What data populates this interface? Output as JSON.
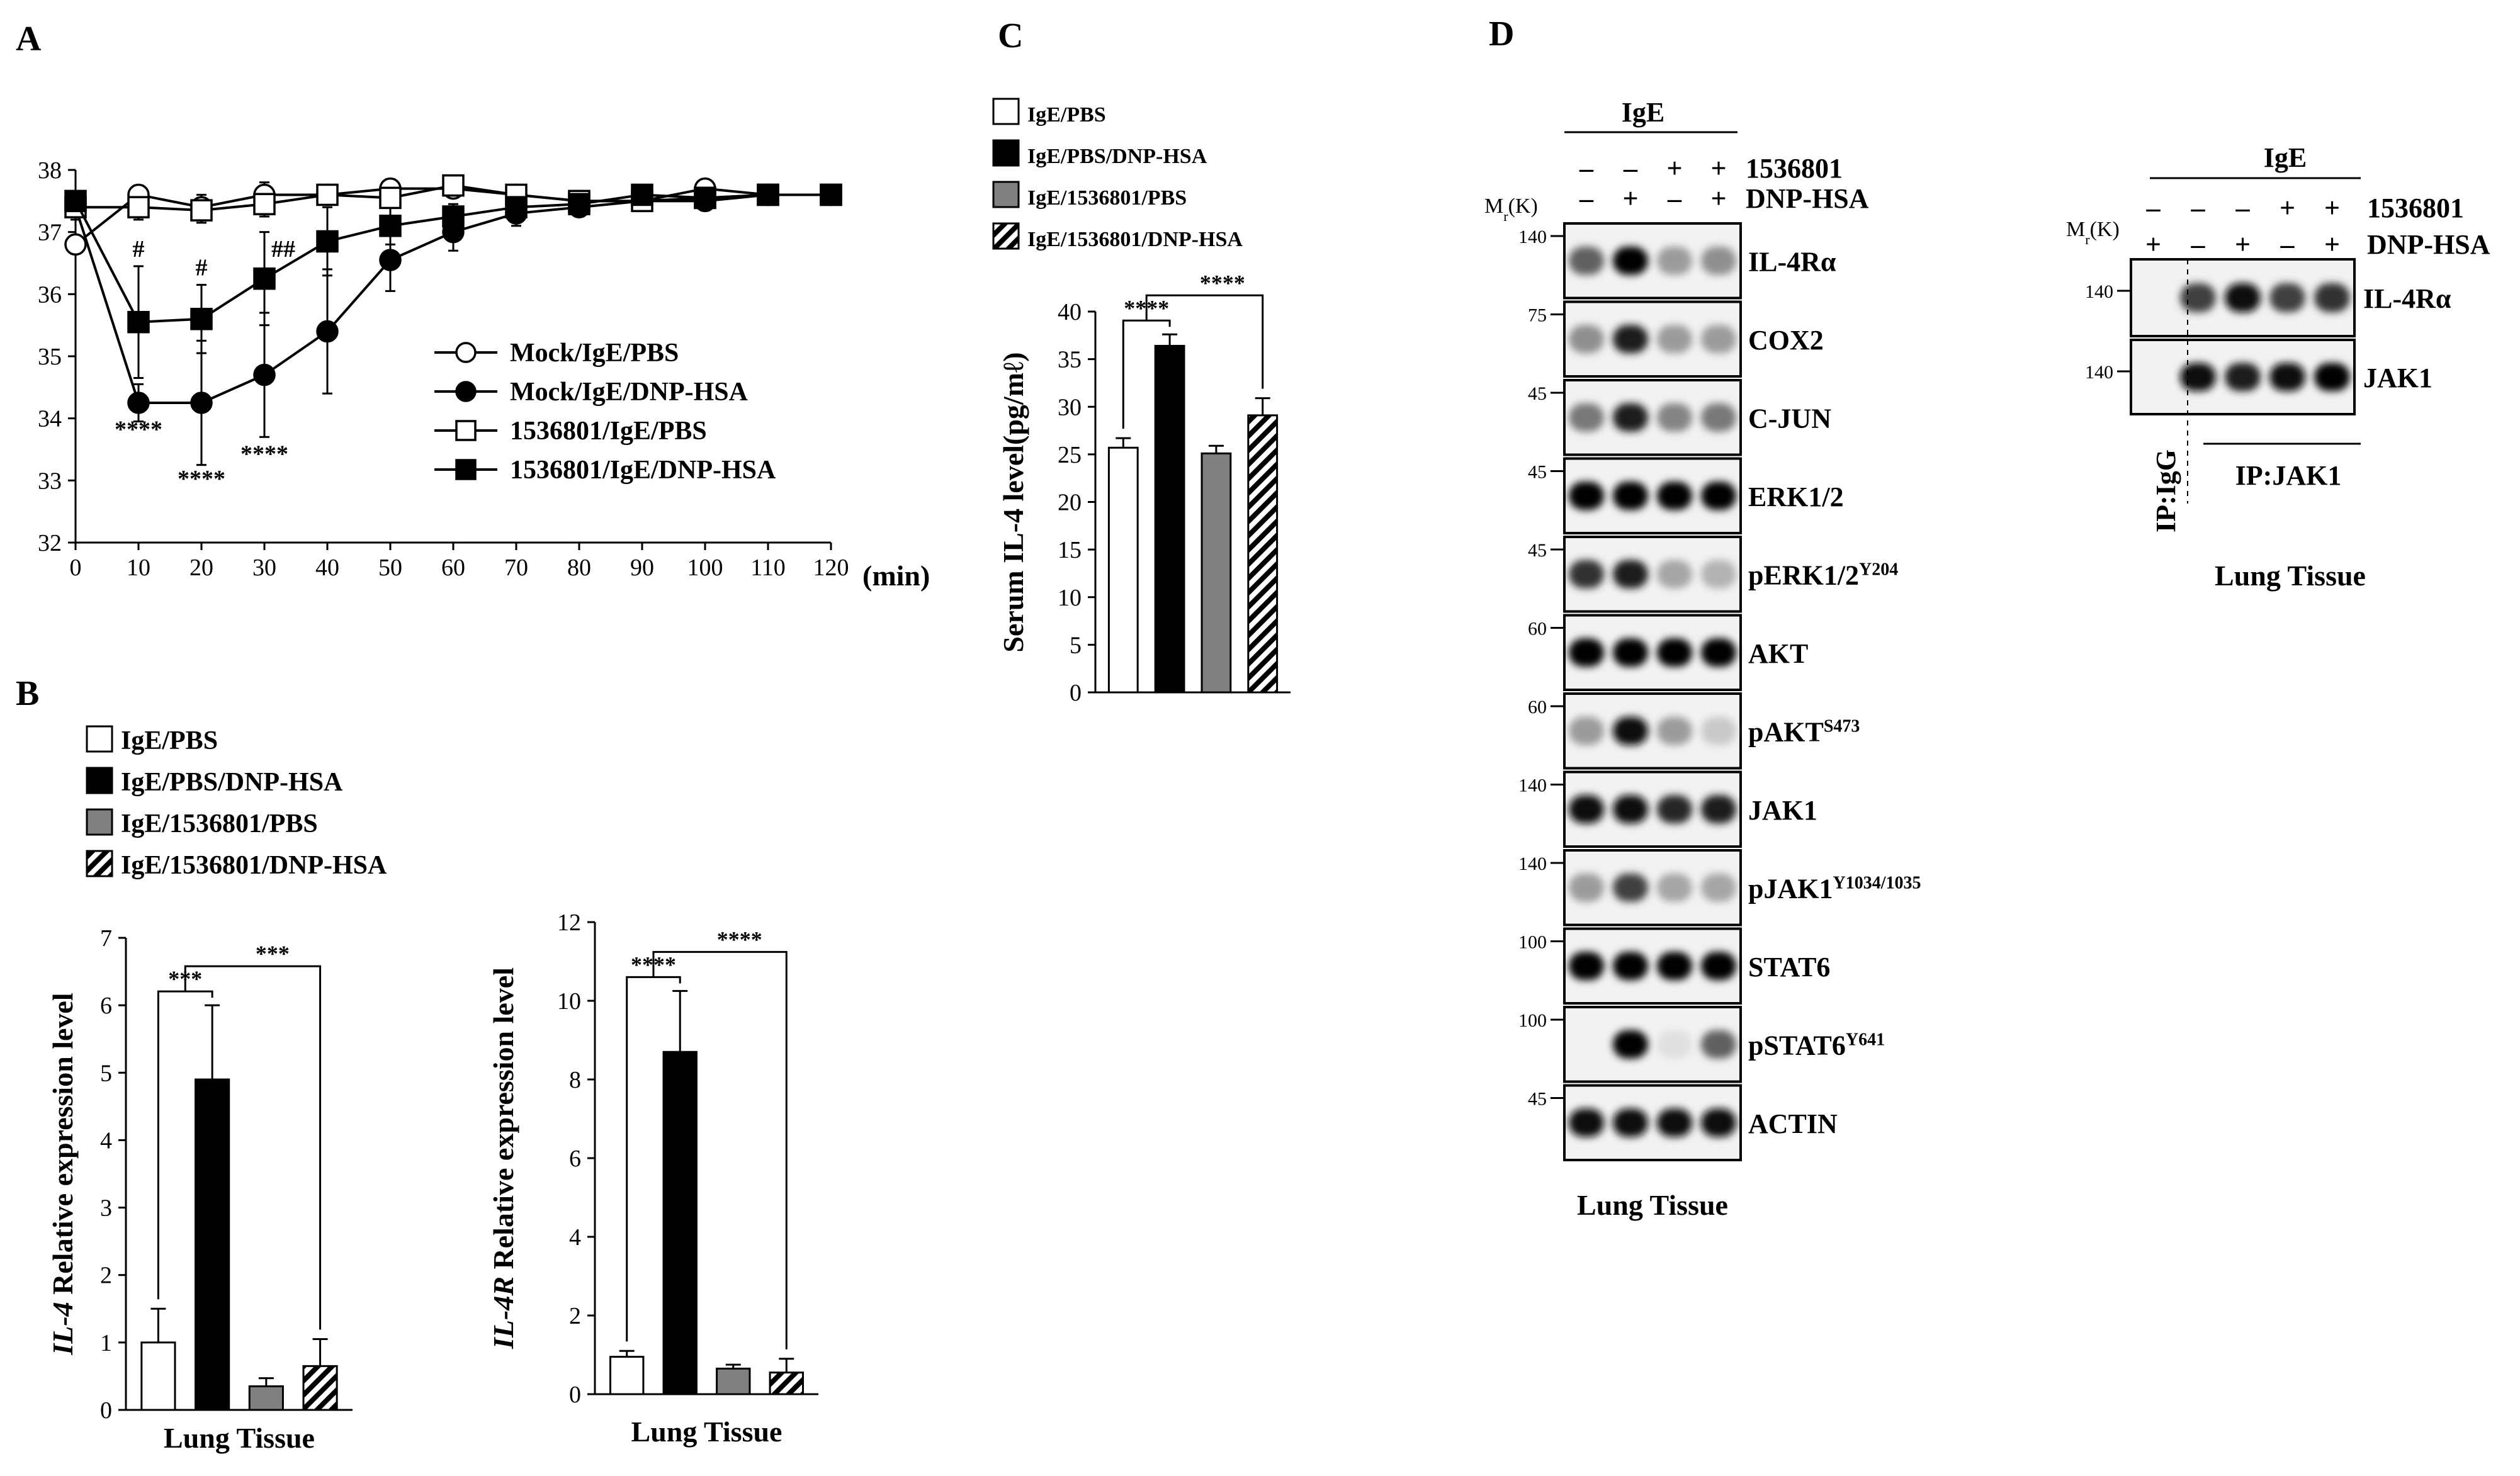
{
  "panels": {
    "A": {
      "label": "A",
      "chart_data": {
        "type": "line",
        "x": [
          0,
          10,
          20,
          30,
          40,
          50,
          60,
          70,
          80,
          90,
          100,
          110,
          120
        ],
        "xlabel": "(min)",
        "ylabel": "",
        "xlim": [
          0,
          120
        ],
        "ylim": [
          32,
          38
        ],
        "xticks": [
          "0",
          "10",
          "20",
          "30",
          "40",
          "50",
          "60",
          "70",
          "80",
          "90",
          "100",
          "110",
          "120"
        ],
        "yticks": [
          "32",
          "33",
          "34",
          "35",
          "36",
          "37",
          "38"
        ],
        "legend_position": "right",
        "series": [
          {
            "name": "Mock/IgE/PBS",
            "marker": "circle-open",
            "values": [
              36.8,
              37.6,
              37.4,
              37.6,
              37.6,
              37.7,
              37.7,
              37.6,
              37.5,
              37.5,
              37.7,
              37.6,
              37.6
            ],
            "errors": [
              0.15,
              0.15,
              0.2,
              0.2,
              0.1,
              0.15,
              0.1,
              0.1,
              0.1,
              0.1,
              0.1,
              0.1,
              0.1
            ]
          },
          {
            "name": "Mock/IgE/DNP-HSA",
            "marker": "circle-filled",
            "values": [
              37.4,
              34.25,
              34.25,
              34.7,
              35.4,
              36.55,
              37.0,
              37.3,
              37.4,
              37.5,
              37.5,
              37.6,
              37.6
            ],
            "errors": [
              0.2,
              0.3,
              1.0,
              1.0,
              1.0,
              0.5,
              0.3,
              0.2,
              0.15,
              0.15,
              0.15,
              0.1,
              0.1
            ]
          },
          {
            "name": "1536801/IgE/PBS",
            "marker": "square-open",
            "values": [
              37.4,
              37.4,
              37.35,
              37.45,
              37.6,
              37.55,
              37.75,
              37.6,
              37.5,
              37.5,
              37.55,
              37.6,
              37.6
            ],
            "errors": [
              0.15,
              0.2,
              0.2,
              0.2,
              0.1,
              0.15,
              0.1,
              0.1,
              0.1,
              0.1,
              0.1,
              0.1,
              0.1
            ]
          },
          {
            "name": "1536801/IgE/DNP-HSA",
            "marker": "square-filled",
            "values": [
              37.5,
              35.55,
              35.6,
              36.25,
              36.85,
              37.1,
              37.25,
              37.4,
              37.45,
              37.6,
              37.55,
              37.6,
              37.6
            ],
            "errors": [
              0.15,
              0.9,
              0.55,
              0.75,
              0.55,
              0.3,
              0.2,
              0.15,
              0.1,
              0.1,
              0.1,
              0.1,
              0.1
            ]
          }
        ],
        "annotations": [
          {
            "text": "****",
            "x": 10,
            "y": 33.7
          },
          {
            "text": "****",
            "x": 20,
            "y": 32.9
          },
          {
            "text": "****",
            "x": 30,
            "y": 33.3
          },
          {
            "text": "#",
            "x": 10,
            "y": 36.6
          },
          {
            "text": "#",
            "x": 20,
            "y": 36.3
          },
          {
            "text": "##",
            "x": 33,
            "y": 36.6
          }
        ]
      }
    },
    "B": {
      "label": "B",
      "legend": [
        "IgE/PBS",
        "IgE/PBS/DNP-HSA",
        "IgE/1536801/PBS",
        "IgE/1536801/DNP-HSA"
      ],
      "charts": [
        {
          "chart_data": {
            "type": "bar",
            "categories": [
              "IgE/PBS",
              "IgE/PBS/DNP-HSA",
              "IgE/1536801/PBS",
              "IgE/1536801/DNP-HSA"
            ],
            "values": [
              1.0,
              4.9,
              0.35,
              0.65
            ],
            "errors": [
              0.5,
              1.1,
              0.12,
              0.4
            ],
            "ylabel_italic": "IL-4",
            "ylabel": "Relative expression level",
            "xlabel": "Lung Tissue",
            "ylim": [
              0,
              7
            ],
            "yticks": [
              "0",
              "1",
              "2",
              "3",
              "4",
              "5",
              "6",
              "7"
            ],
            "significance": [
              "***",
              "***"
            ]
          }
        },
        {
          "chart_data": {
            "type": "bar",
            "categories": [
              "IgE/PBS",
              "IgE/PBS/DNP-HSA",
              "IgE/1536801/PBS",
              "IgE/1536801/DNP-HSA"
            ],
            "values": [
              0.95,
              8.7,
              0.65,
              0.55
            ],
            "errors": [
              0.15,
              1.55,
              0.1,
              0.35
            ],
            "ylabel_italic": "IL-4R",
            "ylabel": "Relative expression level",
            "xlabel": "Lung Tissue",
            "ylim": [
              0,
              12
            ],
            "yticks": [
              "0",
              "2",
              "4",
              "6",
              "8",
              "10",
              "12"
            ],
            "significance": [
              "****",
              "****"
            ]
          }
        }
      ]
    },
    "C": {
      "label": "C",
      "legend": [
        "IgE/PBS",
        "IgE/PBS/DNP-HSA",
        "IgE/1536801/PBS",
        "IgE/1536801/DNP-HSA"
      ],
      "chart_data": {
        "type": "bar",
        "categories": [
          "IgE/PBS",
          "IgE/PBS/DNP-HSA",
          "IgE/1536801/PBS",
          "IgE/1536801/DNP-HSA"
        ],
        "values": [
          25.7,
          36.4,
          25.1,
          29.1
        ],
        "errors": [
          1.0,
          1.2,
          0.8,
          1.8
        ],
        "ylabel": "Serum IL-4 level(pg/mℓ)",
        "ylim": [
          0,
          40
        ],
        "yticks": [
          "0",
          "5",
          "10",
          "15",
          "20",
          "25",
          "30",
          "35",
          "40"
        ],
        "significance": [
          "****",
          "****"
        ]
      }
    },
    "D": {
      "label": "D",
      "header_group": "IgE",
      "treatments": [
        {
          "name": "1536801",
          "signs": [
            "–",
            "–",
            "+",
            "+"
          ]
        },
        {
          "name": "DNP-HSA",
          "signs": [
            "–",
            "+",
            "–",
            "+"
          ]
        }
      ],
      "mw_label": "Mr(K)",
      "mw_label_main": "M",
      "mw_label_sub": "r",
      "mw_label_rest": "(K)",
      "blots": [
        {
          "mw": "140",
          "name": "IL-4Rα",
          "sup": ""
        },
        {
          "mw": "75",
          "name": "COX2",
          "sup": ""
        },
        {
          "mw": "45",
          "name": "C-JUN",
          "sup": ""
        },
        {
          "mw": "45",
          "name": "ERK1/2",
          "sup": ""
        },
        {
          "mw": "45",
          "name": "pERK1/2",
          "sup": "Y204"
        },
        {
          "mw": "60",
          "name": "AKT",
          "sup": ""
        },
        {
          "mw": "60",
          "name": "pAKT",
          "sup": "S473"
        },
        {
          "mw": "140",
          "name": "JAK1",
          "sup": ""
        },
        {
          "mw": "140",
          "name": "pJAK1",
          "sup": "Y1034/1035"
        },
        {
          "mw": "100",
          "name": "STAT6",
          "sup": ""
        },
        {
          "mw": "100",
          "name": "pSTAT6",
          "sup": "Y641"
        },
        {
          "mw": "45",
          "name": "ACTIN",
          "sup": ""
        }
      ],
      "band_intensity": [
        [
          0.6,
          1.0,
          0.35,
          0.4
        ],
        [
          0.4,
          0.9,
          0.35,
          0.35
        ],
        [
          0.5,
          0.9,
          0.45,
          0.5
        ],
        [
          1.0,
          1.0,
          1.0,
          1.0
        ],
        [
          0.8,
          0.9,
          0.3,
          0.25
        ],
        [
          1.0,
          1.0,
          1.0,
          1.0
        ],
        [
          0.35,
          0.95,
          0.35,
          0.15
        ],
        [
          0.95,
          0.95,
          0.85,
          0.9
        ],
        [
          0.35,
          0.75,
          0.3,
          0.3
        ],
        [
          1.0,
          1.0,
          1.0,
          1.0
        ],
        [
          0.0,
          1.0,
          0.05,
          0.6
        ],
        [
          0.95,
          0.95,
          0.95,
          0.95
        ]
      ],
      "footer": "Lung Tissue"
    },
    "IP": {
      "header_group": "IgE",
      "treatments": [
        {
          "name": "1536801",
          "signs": [
            "–",
            "–",
            "–",
            "+",
            "+"
          ]
        },
        {
          "name": "DNP-HSA",
          "signs": [
            "+",
            "–",
            "+",
            "–",
            "+"
          ]
        }
      ],
      "mw_label_main": "M",
      "mw_label_sub": "r",
      "mw_label_rest": "(K)",
      "blots": [
        {
          "mw": "140",
          "name": "IL-4Rα"
        },
        {
          "mw": "140",
          "name": "JAK1"
        }
      ],
      "band_intensity": [
        [
          0.0,
          0.75,
          0.95,
          0.75,
          0.8
        ],
        [
          0.0,
          0.95,
          0.9,
          0.95,
          1.0
        ]
      ],
      "ip_igg": "IP:IgG",
      "ip_jak1": "IP:JAK1",
      "footer": "Lung Tissue"
    }
  },
  "colors": {
    "black": "#000000",
    "gray": "#808080",
    "white": "#ffffff",
    "blot_bg": "#f2f2f2"
  }
}
